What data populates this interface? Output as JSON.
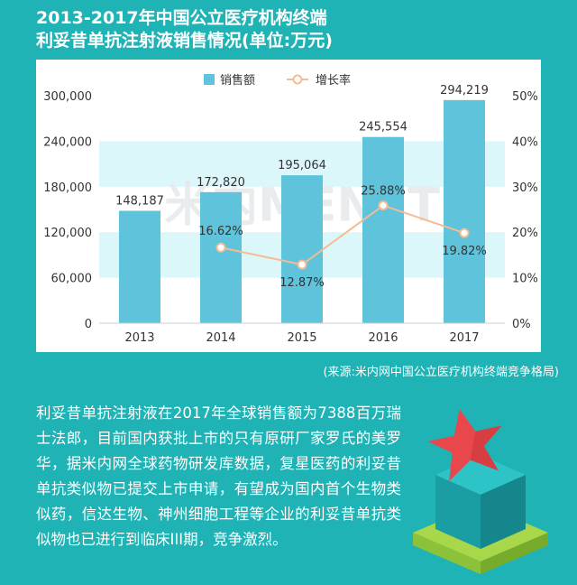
{
  "title": {
    "line1": "2013-2017年中国公立医疗机构终端",
    "line2": "利妥昔单抗注射液销售情况(单位:万元)"
  },
  "watermark": "米内MENET",
  "chart_data": {
    "type": "bar",
    "categories": [
      "2013",
      "2014",
      "2015",
      "2016",
      "2017"
    ],
    "series": [
      {
        "name": "销售额",
        "type": "bar",
        "axis": "left",
        "values": [
          148187,
          172820,
          195064,
          245554,
          294219
        ],
        "labels": [
          "148,187",
          "172,820",
          "195,064",
          "245,554",
          "294,219"
        ],
        "color": "#5fc3dc"
      },
      {
        "name": "增长率",
        "type": "line",
        "axis": "right",
        "values": [
          null,
          16.62,
          12.87,
          25.88,
          19.82
        ],
        "labels": [
          "",
          "16.62%",
          "12.87%",
          "25.88%",
          "19.82%"
        ],
        "color": "#f2bd94"
      }
    ],
    "y_left": {
      "ylim": [
        0,
        300000
      ],
      "ticks": [
        "0",
        "60,000",
        "120,000",
        "180,000",
        "240,000",
        "300,000"
      ]
    },
    "y_right": {
      "ylim": [
        0,
        50
      ],
      "ticks": [
        "0%",
        "10%",
        "20%",
        "30%",
        "40%",
        "50%"
      ]
    },
    "legend": "top-center",
    "band_color": "#dcf7fa"
  },
  "source": "(来源:米内网中国公立医疗机构终端竞争格局)",
  "body": "利妥昔单抗注射液在2017年全球销售额为7388百万瑞士法郎，目前国内获批上市的只有原研厂家罗氏的美罗华，据米内网全球药物研发库数据，复星医药的利妥昔单抗类似物已提交上市申请，有望成为国内首个生物类似药，信达生物、神州细胞工程等企业的利妥昔单抗类似物也已进行到临床III期，竞争激烈。",
  "colors": {
    "background": "#1fb3b5",
    "bar": "#5fc3dc",
    "line": "#f2bd94",
    "star": "#e8484c",
    "box_top": "#2ec3c7",
    "box_side": "#1a9ea3",
    "platform": "#a8d84a"
  },
  "icons": [
    "star-icon",
    "box-icon"
  ]
}
